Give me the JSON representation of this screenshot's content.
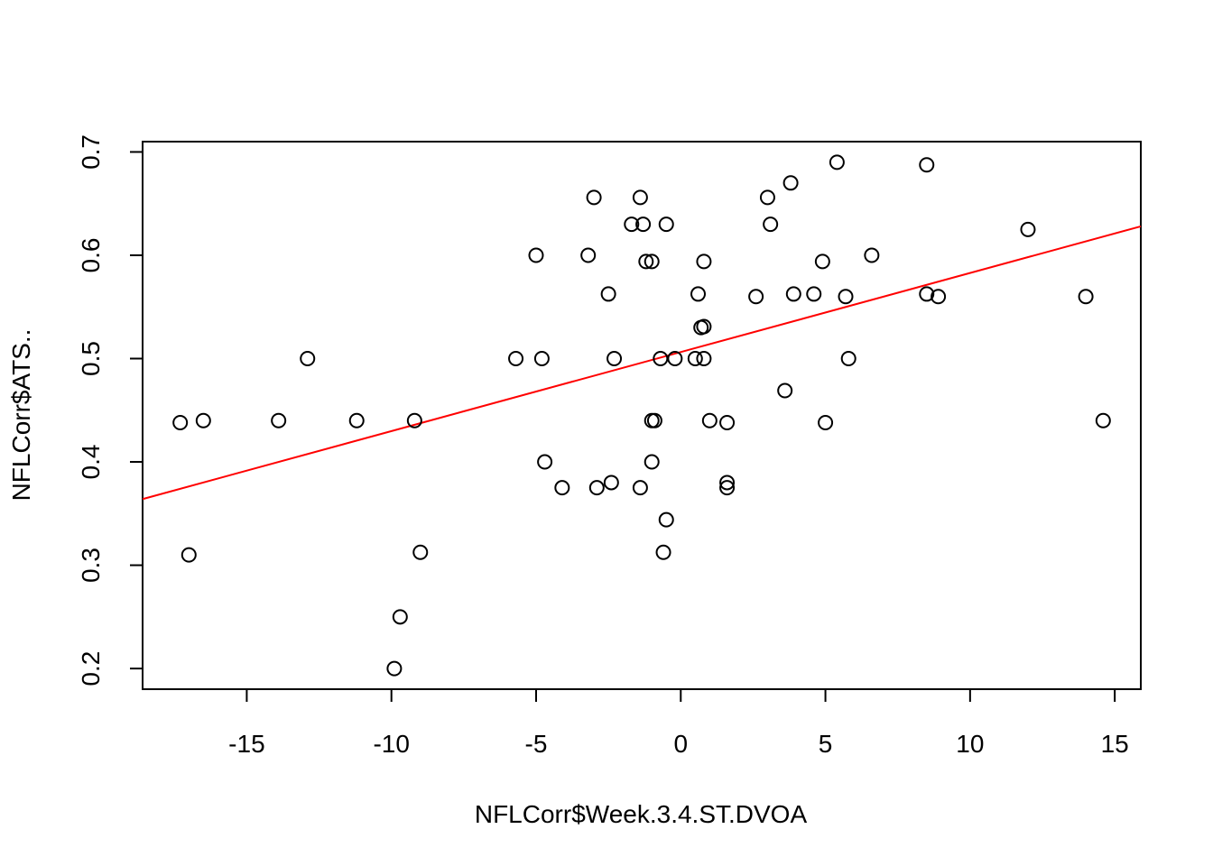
{
  "chart_data": {
    "type": "scatter",
    "title": "",
    "xlabel": "NFLCorr$Week.3.4.ST.DVOA",
    "ylabel": "NFLCorr$ATS..",
    "xlim": [
      -18.6,
      15.9
    ],
    "ylim": [
      0.18,
      0.71
    ],
    "xticks": [
      -15,
      -10,
      -5,
      0,
      5,
      10,
      15
    ],
    "yticks": [
      0.2,
      0.3,
      0.4,
      0.5,
      0.6,
      0.7
    ],
    "xtick_labels": [
      "-15",
      "-10",
      "-5",
      "0",
      "5",
      "10",
      "15"
    ],
    "ytick_labels": [
      "0.2",
      "0.3",
      "0.4",
      "0.5",
      "0.6",
      "0.7"
    ],
    "grid": false,
    "points": [
      [
        -17.3,
        0.438
      ],
      [
        -16.5,
        0.44
      ],
      [
        -17.0,
        0.31
      ],
      [
        -13.9,
        0.44
      ],
      [
        -12.9,
        0.5
      ],
      [
        -11.2,
        0.44
      ],
      [
        -9.9,
        0.2
      ],
      [
        -9.7,
        0.25
      ],
      [
        -9.2,
        0.44
      ],
      [
        -9.0,
        0.3125
      ],
      [
        -5.7,
        0.5
      ],
      [
        -5.0,
        0.6
      ],
      [
        -4.8,
        0.5
      ],
      [
        -4.7,
        0.4
      ],
      [
        -4.1,
        0.375
      ],
      [
        -3.2,
        0.6
      ],
      [
        -3.0,
        0.656
      ],
      [
        -2.9,
        0.375
      ],
      [
        -2.5,
        0.5625
      ],
      [
        -2.4,
        0.38
      ],
      [
        -2.3,
        0.5
      ],
      [
        -1.7,
        0.63
      ],
      [
        -1.4,
        0.656
      ],
      [
        -1.4,
        0.375
      ],
      [
        -1.3,
        0.63
      ],
      [
        -1.2,
        0.594
      ],
      [
        -1.0,
        0.594
      ],
      [
        -1.0,
        0.44
      ],
      [
        -1.0,
        0.4
      ],
      [
        -0.9,
        0.44
      ],
      [
        -0.7,
        0.5
      ],
      [
        -0.6,
        0.3125
      ],
      [
        -0.5,
        0.63
      ],
      [
        -0.5,
        0.344
      ],
      [
        -0.2,
        0.5
      ],
      [
        0.5,
        0.5
      ],
      [
        0.6,
        0.5625
      ],
      [
        0.7,
        0.53
      ],
      [
        0.8,
        0.531
      ],
      [
        0.8,
        0.594
      ],
      [
        0.8,
        0.5
      ],
      [
        1.0,
        0.44
      ],
      [
        1.6,
        0.438
      ],
      [
        1.6,
        0.38
      ],
      [
        1.6,
        0.375
      ],
      [
        2.6,
        0.56
      ],
      [
        3.0,
        0.656
      ],
      [
        3.1,
        0.63
      ],
      [
        3.6,
        0.469
      ],
      [
        3.8,
        0.67
      ],
      [
        3.9,
        0.5625
      ],
      [
        4.6,
        0.5625
      ],
      [
        4.9,
        0.594
      ],
      [
        5.0,
        0.438
      ],
      [
        5.4,
        0.69
      ],
      [
        5.7,
        0.56
      ],
      [
        5.8,
        0.5
      ],
      [
        6.6,
        0.6
      ],
      [
        8.5,
        0.6875
      ],
      [
        8.5,
        0.5625
      ],
      [
        8.9,
        0.56
      ],
      [
        12.0,
        0.625
      ],
      [
        14.0,
        0.56
      ],
      [
        14.6,
        0.44
      ]
    ],
    "regression_line": {
      "x": [
        -18.6,
        15.9
      ],
      "y": [
        0.364,
        0.628
      ],
      "color": "#ff0000"
    },
    "point_color": "#000000"
  }
}
